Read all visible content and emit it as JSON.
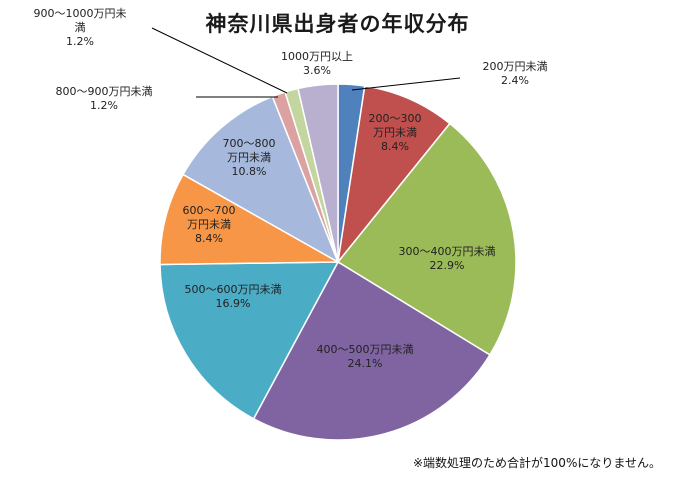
{
  "chart_data": {
    "type": "pie",
    "title": "神奈川県出身者の年収分布",
    "slices": [
      {
        "label": "200万円未満",
        "lines": [
          "200万円未満"
        ],
        "value": 2.4,
        "display": "2.4%",
        "color": "#4f81bd"
      },
      {
        "label": "200〜300万円未満",
        "lines": [
          "200〜300",
          "万円未満"
        ],
        "value": 8.4,
        "display": "8.4%",
        "color": "#c0504d"
      },
      {
        "label": "300〜400万円未満",
        "lines": [
          "300〜400万円未満"
        ],
        "value": 22.9,
        "display": "22.9%",
        "color": "#9bbb59"
      },
      {
        "label": "400〜500万円未満",
        "lines": [
          "400〜500万円未満"
        ],
        "value": 24.1,
        "display": "24.1%",
        "color": "#8064a2"
      },
      {
        "label": "500〜600万円未満",
        "lines": [
          "500〜600万円未満"
        ],
        "value": 16.9,
        "display": "16.9%",
        "color": "#4bacc6"
      },
      {
        "label": "600〜700万円未満",
        "lines": [
          "600〜700",
          "万円未満"
        ],
        "value": 8.4,
        "display": "8.4%",
        "color": "#f79646"
      },
      {
        "label": "700〜800万円未満",
        "lines": [
          "700〜800",
          "万円未満"
        ],
        "value": 10.8,
        "display": "10.8%",
        "color": "#a6b9dc"
      },
      {
        "label": "800〜900万円未満",
        "lines": [
          "800〜900万円未満"
        ],
        "value": 1.2,
        "display": "1.2%",
        "color": "#dba2a1"
      },
      {
        "label": "900〜1000万円未満",
        "lines": [
          "900〜1000万円未",
          "満"
        ],
        "value": 1.2,
        "display": "1.2%",
        "color": "#c4d6a0"
      },
      {
        "label": "1000万円以上",
        "lines": [
          "1000万円以上"
        ],
        "value": 3.6,
        "display": "3.6%",
        "color": "#b9afcf"
      }
    ],
    "footnote": "※端数処理のため合計が100%になりません。"
  }
}
